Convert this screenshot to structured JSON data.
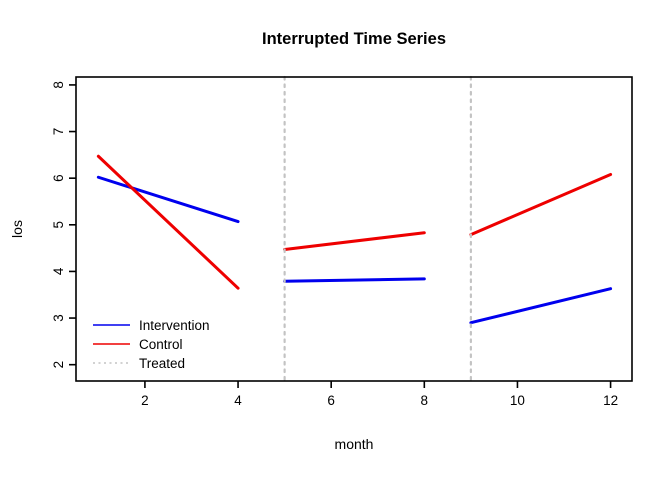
{
  "title": "Interrupted Time Series",
  "axes": {
    "x": {
      "label": "month",
      "ticks": [
        2,
        4,
        6,
        8,
        10,
        12
      ]
    },
    "y": {
      "label": "los",
      "ticks": [
        2,
        3,
        4,
        5,
        6,
        7,
        8
      ]
    }
  },
  "colors": {
    "intervention": "#0000ee",
    "control": "#ee0000",
    "treated": "#c3c3c3",
    "axis": "#000000"
  },
  "legend": {
    "items": [
      {
        "label": "Intervention",
        "color": "#0000ee",
        "style": "solid"
      },
      {
        "label": "Control",
        "color": "#ee0000",
        "style": "solid"
      },
      {
        "label": "Treated",
        "color": "#c3c3c3",
        "style": "dotted"
      }
    ]
  },
  "chart_data": {
    "type": "line",
    "title": "Interrupted Time Series",
    "xlabel": "month",
    "ylabel": "los",
    "xlim": [
      0.52,
      12.46
    ],
    "ylim": [
      1.65,
      8.17
    ],
    "x_ticks": [
      2,
      4,
      6,
      8,
      10,
      12
    ],
    "y_ticks": [
      2,
      3,
      4,
      5,
      6,
      7,
      8
    ],
    "grid": false,
    "legend_position": "bottom-left-inside",
    "series": [
      {
        "name": "Intervention",
        "color": "#0000ee",
        "style": "solid",
        "segments": [
          [
            [
              1,
              6.02
            ],
            [
              4,
              5.07
            ]
          ],
          [
            [
              5,
              3.79
            ],
            [
              8,
              3.84
            ]
          ],
          [
            [
              9,
              2.9
            ],
            [
              12,
              3.63
            ]
          ]
        ]
      },
      {
        "name": "Control",
        "color": "#ee0000",
        "style": "solid",
        "segments": [
          [
            [
              1,
              6.47
            ],
            [
              4,
              3.64
            ]
          ],
          [
            [
              5,
              4.47
            ],
            [
              8,
              4.83
            ]
          ],
          [
            [
              9,
              4.79
            ],
            [
              12,
              6.08
            ]
          ]
        ]
      },
      {
        "name": "Treated",
        "color": "#c3c3c3",
        "style": "dotted",
        "vlines": [
          5,
          9
        ]
      }
    ]
  }
}
